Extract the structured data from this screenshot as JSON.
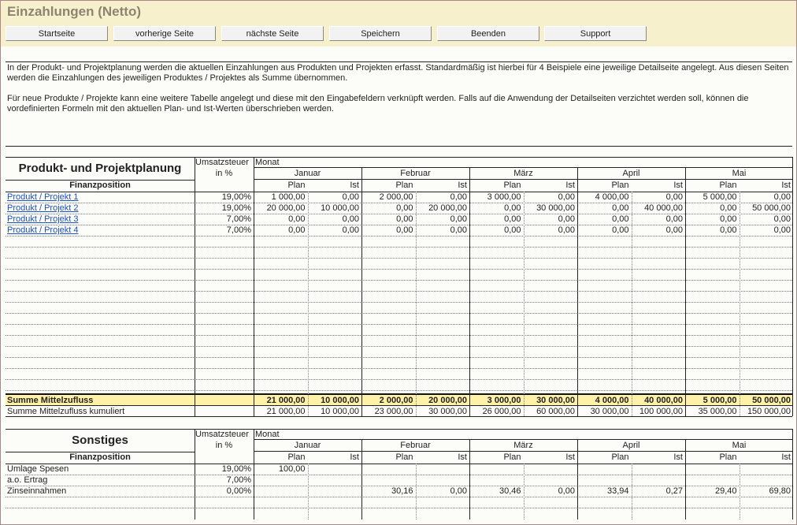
{
  "header": {
    "title": "Einzahlungen (Netto)"
  },
  "buttons": [
    "Startseite",
    "vorherige Seite",
    "nächste Seite",
    "Speichern",
    "Beenden",
    "Support"
  ],
  "intro": [
    "In der Produkt- und Projektplanung werden die aktuellen Einzahlungen aus Produkten und Projekten erfasst. Standardmäßig ist hierbei für 4 Beispiele eine jeweilige Detailseite angelegt. Aus diesen Seiten werden die Einzahlungen des jeweiligen Produktes / Projektes als Summe übernommen.",
    "Für neue Produkte / Projekte kann eine weitere Tabelle angelegt und diese mit den Eingabefeldern verknüpft werden. Falls auf die Anwendung der Detailseiten verzichtet werden soll, können die vordefinierten Formeln mit den aktuellen Plan- und Ist-Werten überschrieben werden."
  ],
  "tables": [
    {
      "title": "Produkt- und Projektplanung",
      "tax_header": "Umsatzsteuer",
      "tax_unit": "in %",
      "month_header": "Monat",
      "position_header": "Finanzposition",
      "months": [
        "Januar",
        "Februar",
        "März",
        "April",
        "Mai"
      ],
      "plan_label": "Plan",
      "ist_label": "Ist",
      "rows": [
        {
          "label": "Produkt / Projekt 1",
          "link": true,
          "tax": "19,00%",
          "values": [
            "1 000,00",
            "0,00",
            "2 000,00",
            "0,00",
            "3 000,00",
            "0,00",
            "4 000,00",
            "0,00",
            "5 000,00",
            "0,00"
          ]
        },
        {
          "label": "Produkt / Projekt 2",
          "link": true,
          "tax": "19,00%",
          "values": [
            "20 000,00",
            "10 000,00",
            "0,00",
            "20 000,00",
            "0,00",
            "30 000,00",
            "0,00",
            "40 000,00",
            "0,00",
            "50 000,00"
          ]
        },
        {
          "label": "Produkt / Projekt 3",
          "link": true,
          "tax": "7,00%",
          "values": [
            "0,00",
            "0,00",
            "0,00",
            "0,00",
            "0,00",
            "0,00",
            "0,00",
            "0,00",
            "0,00",
            "0,00"
          ]
        },
        {
          "label": "Produkt / Projekt 4",
          "link": true,
          "tax": "7,00%",
          "values": [
            "0,00",
            "0,00",
            "0,00",
            "0,00",
            "0,00",
            "0,00",
            "0,00",
            "0,00",
            "0,00",
            "0,00"
          ]
        }
      ],
      "summary_rows": [
        {
          "label": "Summe Mittelzufluss",
          "highlight": true,
          "values": [
            "21 000,00",
            "10 000,00",
            "2 000,00",
            "20 000,00",
            "3 000,00",
            "30 000,00",
            "4 000,00",
            "40 000,00",
            "5 000,00",
            "50 000,00"
          ]
        },
        {
          "label": "Summe Mittelzufluss kumuliert",
          "highlight": false,
          "values": [
            "21 000,00",
            "10 000,00",
            "23 000,00",
            "30 000,00",
            "26 000,00",
            "60 000,00",
            "30 000,00",
            "100 000,00",
            "35 000,00",
            "150 000,00"
          ]
        }
      ]
    },
    {
      "title": "Sonstiges",
      "tax_header": "Umsatzsteuer",
      "tax_unit": "in %",
      "month_header": "Monat",
      "position_header": "Finanzposition",
      "months": [
        "Januar",
        "Februar",
        "März",
        "April",
        "Mai"
      ],
      "plan_label": "Plan",
      "ist_label": "Ist",
      "rows": [
        {
          "label": "Umlage Spesen",
          "link": false,
          "tax": "19,00%",
          "values": [
            "100,00",
            null,
            null,
            null,
            null,
            null,
            null,
            null,
            null,
            null
          ]
        },
        {
          "label": "a.o. Ertrag",
          "link": false,
          "tax": "7,00%",
          "values": [
            null,
            null,
            null,
            null,
            null,
            null,
            null,
            null,
            null,
            null
          ]
        },
        {
          "label": "Zinseinnahmen",
          "link": false,
          "tax": "0,00%",
          "values": [
            null,
            null,
            "30,16",
            "0,00",
            "30,46",
            "0,00",
            "33,94",
            "0,27",
            "29,40",
            "69,80"
          ]
        }
      ],
      "summary_rows": []
    }
  ]
}
